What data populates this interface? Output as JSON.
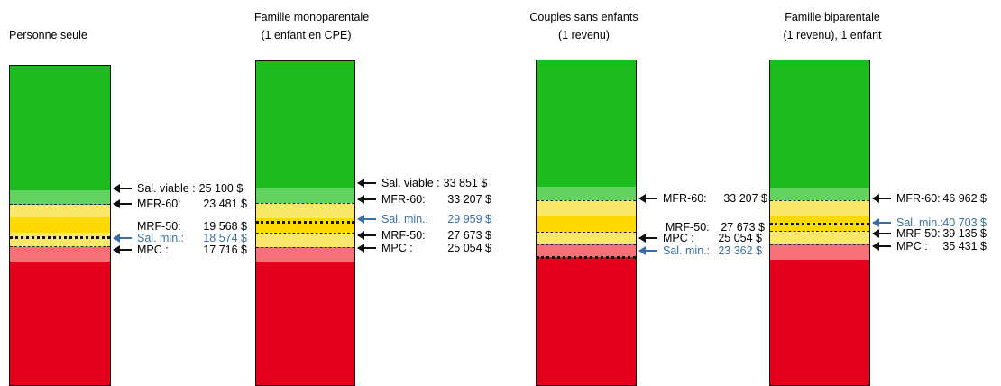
{
  "colors": {
    "green": "#1cbc1f",
    "light_green": "#61d35e",
    "light_yellow": "#fbe86b",
    "yellow": "#fdd900",
    "pink": "#f77176",
    "red": "#e2001a",
    "blue_text": "#3a6ea5"
  },
  "panels": [
    {
      "title_lines": [
        "Personne seule"
      ],
      "annotations": [
        {
          "label": "Sal. viable :",
          "value": "25 100 $",
          "blue": false
        },
        {
          "label": "MFR-60:",
          "value": "23 481 $",
          "blue": false
        },
        {
          "label": "MRF-50:",
          "value": "19 568 $",
          "blue": false
        },
        {
          "label": "Sal. min.:",
          "value": "18 574 $",
          "blue": true
        },
        {
          "label": "MPC :",
          "value": "17 716 $",
          "blue": false
        }
      ]
    },
    {
      "title_lines": [
        "Famille monoparentale",
        "(1 enfant en CPE)"
      ],
      "annotations": [
        {
          "label": "Sal. viable :",
          "value": "33 851 $",
          "blue": false
        },
        {
          "label": "MFR-60:",
          "value": "33 207 $",
          "blue": false
        },
        {
          "label": "Sal. min.:",
          "value": "29 959 $",
          "blue": true
        },
        {
          "label": "MRF-50:",
          "value": "27 673 $",
          "blue": false
        },
        {
          "label": "MPC :",
          "value": "25 054 $",
          "blue": false
        }
      ]
    },
    {
      "title_lines": [
        "Couples sans enfants",
        "(1 revenu)"
      ],
      "annotations": [
        {
          "label": "MFR-60:",
          "value": "33 207 $",
          "blue": false
        },
        {
          "label": "MRF-50:",
          "value": "27 673 $",
          "blue": false
        },
        {
          "label": "MPC :",
          "value": "25 054 $",
          "blue": false
        },
        {
          "label": "Sal. min.:",
          "value": "23 362 $",
          "blue": true
        }
      ]
    },
    {
      "title_lines": [
        "Famille biparentale",
        "(1 revenu), 1 enfant"
      ],
      "annotations": [
        {
          "label": "MFR-60:",
          "value": "46 962 $",
          "blue": false
        },
        {
          "label": "Sal. min.:",
          "value": "40 703 $",
          "blue": true
        },
        {
          "label": "MRF-50:",
          "value": "39 135 $",
          "blue": false
        },
        {
          "label": "MPC :",
          "value": "35 431 $",
          "blue": false
        }
      ]
    }
  ]
}
